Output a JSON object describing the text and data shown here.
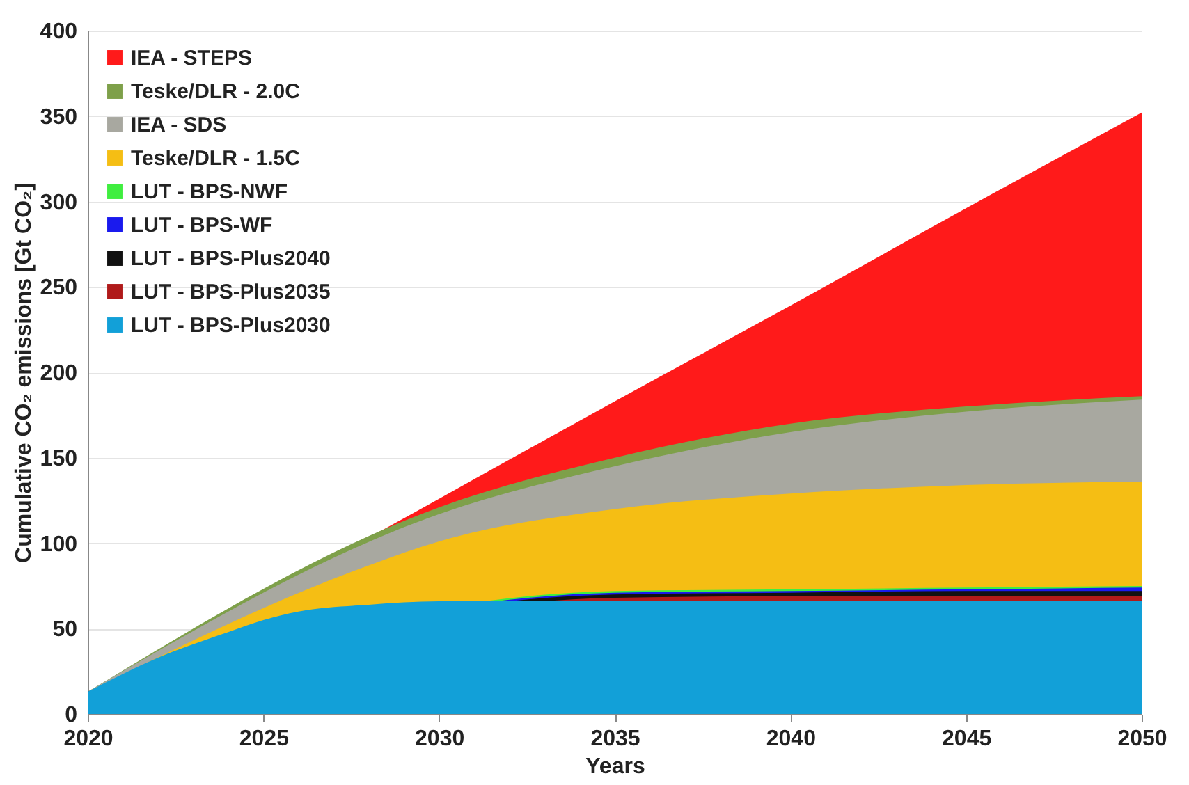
{
  "chart_data": {
    "type": "area",
    "xlabel": "Years",
    "ylabel": "Cumulative CO₂ emissions [Gt CO₂]",
    "x": [
      2020,
      2022,
      2024,
      2025,
      2026,
      2028,
      2030,
      2035,
      2040,
      2045,
      2050
    ],
    "xlim": [
      2020,
      2050
    ],
    "xticks": [
      2020,
      2025,
      2030,
      2035,
      2040,
      2045,
      2050
    ],
    "ylim": [
      0,
      400
    ],
    "yticks": [
      0,
      50,
      100,
      150,
      200,
      250,
      300,
      350,
      400
    ],
    "grid": "y",
    "legend": "top left",
    "series": [
      {
        "name": "IEA - STEPS",
        "color": "#ff1a1a",
        "x": [
          2020,
          2030,
          2035,
          2040,
          2045,
          2050
        ],
        "values": [
          13,
          126,
          183,
          239,
          296,
          352
        ]
      },
      {
        "name": "Teske/DLR - 2.0C",
        "color": "#7ea04a",
        "x": [
          2020,
          2030,
          2035,
          2040,
          2045,
          2050
        ],
        "values": [
          13,
          121,
          150,
          170,
          180,
          186
        ]
      },
      {
        "name": "IEA - SDS",
        "color": "#a8a8a0",
        "x": [
          2020,
          2030,
          2035,
          2040,
          2045,
          2050
        ],
        "values": [
          13,
          117,
          145,
          165,
          177,
          184
        ]
      },
      {
        "name": "Teske/DLR - 1.5C",
        "color": "#f5be14",
        "x": [
          2020,
          2028,
          2030,
          2035,
          2040,
          2045,
          2050
        ],
        "values": [
          13,
          87,
          101,
          120,
          129,
          134,
          136
        ]
      },
      {
        "name": "LUT - BPS-NWF",
        "color": "#40ee40",
        "x": [
          2020,
          2035,
          2040,
          2045,
          2050
        ],
        "values": [
          13,
          72,
          73,
          74,
          75
        ]
      },
      {
        "name": "LUT - BPS-WF",
        "color": "#1a1aee",
        "x": [
          2020,
          2035,
          2040,
          2045,
          2050
        ],
        "values": [
          13,
          71,
          72,
          73,
          74
        ]
      },
      {
        "name": "LUT - BPS-Plus2040",
        "color": "#111111",
        "x": [
          2020,
          2035,
          2040,
          2045,
          2050
        ],
        "values": [
          13,
          70,
          71,
          72,
          72
        ]
      },
      {
        "name": "LUT - BPS-Plus2035",
        "color": "#b01a1a",
        "x": [
          2020,
          2035,
          2040,
          2045,
          2050
        ],
        "values": [
          13,
          68,
          69,
          69,
          69
        ]
      },
      {
        "name": "LUT - BPS-Plus2030",
        "color": "#12a0d8",
        "values": [
          13,
          33,
          48,
          55,
          60,
          64,
          66,
          66,
          66,
          66,
          66
        ]
      }
    ]
  }
}
